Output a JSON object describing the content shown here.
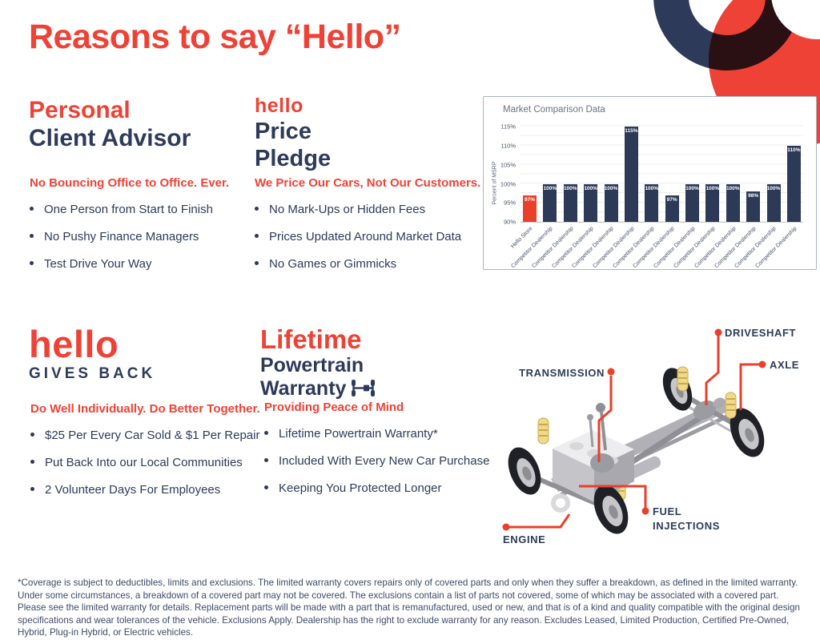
{
  "page": {
    "title": "Reasons to say “Hello”"
  },
  "colors": {
    "accent_red": "#ee4236",
    "navy": "#2d3a5a",
    "chart_bar_red": "#e8402a",
    "chart_bar_navy": "#2c3a58"
  },
  "sections": {
    "advisor": {
      "title_accent": "Personal",
      "title_rest": "Client Advisor",
      "subhead": "No Bouncing Office to Office. Ever.",
      "bullets": [
        "One Person from Start to Finish",
        "No Pushy Finance Managers",
        "Test Drive Your Way"
      ]
    },
    "price": {
      "logo": "hello",
      "title_lines": [
        "Price",
        "Pledge"
      ],
      "subhead": "We Price Our Cars, Not Our Customers.",
      "bullets": [
        "No Mark-Ups or Hidden Fees",
        "Prices Updated Around Market Data",
        "No Games or Gimmicks"
      ]
    },
    "gives_back": {
      "logo": "hello",
      "title_rest": "GIVES BACK",
      "subhead": "Do Well Individually. Do Better Together.",
      "bullets": [
        "$25 Per Every Car Sold & $1 Per Repair",
        "Put Back Into our Local Communities",
        "2 Volunteer Days For Employees"
      ]
    },
    "warranty": {
      "title_accent": "Lifetime",
      "title_lines": [
        "Powertrain",
        "Warranty"
      ],
      "subhead": "Providing Peace of Mind",
      "bullets": [
        "Lifetime Powertrain Warranty*",
        "Included With Every New Car Purchase",
        "Keeping You Protected Longer"
      ]
    }
  },
  "chart_data": {
    "type": "bar",
    "title": "Market Comparison Data",
    "xlabel": "",
    "ylabel": "Percent of MSRP",
    "ylim": [
      90,
      117
    ],
    "yticks": [
      90,
      95,
      100,
      105,
      110,
      115
    ],
    "grid": true,
    "legend": false,
    "categories": [
      "Hello Store",
      "Competitor Dealership",
      "Competitor Dealership",
      "Competitor Dealership",
      "Competitor Dealership",
      "Competitor Dealership",
      "Competitor Dealership",
      "Competitor Dealership",
      "Competitor Dealership",
      "Competitor Dealership",
      "Competitor Dealership",
      "Competitor Dealership",
      "Competitor Dealership",
      "Competitor Dealership"
    ],
    "values": [
      97,
      100,
      100,
      100,
      100,
      115,
      100,
      97,
      100,
      100,
      100,
      98,
      100,
      110
    ],
    "bar_labels": [
      "97%",
      "100%",
      "100%",
      "100%",
      "100%",
      "115%",
      "100%",
      "97%",
      "100%",
      "100%",
      "100%",
      "98%",
      "100%",
      "110%"
    ],
    "highlight_index": 0,
    "highlight_color": "#e8402a",
    "bar_color": "#2c3a58"
  },
  "diagram": {
    "labels": {
      "transmission": "TRANSMISSION",
      "driveshaft": "DRIVESHAFT",
      "axle": "AXLE",
      "fuel_injections": "FUEL INJECTIONS",
      "engine": "ENGINE"
    }
  },
  "footer": {
    "disclaimer": "*Coverage is subject to deductibles, limits and exclusions. The limited warranty covers repairs only of covered parts and only when they suffer a breakdown, as defined in the limited warranty. Under some circumstances, a breakdown of a covered part may not be covered. The exclusions contain a list of parts not covered, some of which may be associated with a covered part. Please see the limited warranty for details. Replacement parts will be made with a part that is remanufactured, used or new, and that is of a kind and quality compatible with the original design specifications and wear tolerances of the vehicle. Exclusions Apply. Dealership has the right to exclude warranty for any reason. Excludes Leased, Limited Production, Certified Pre-Owned, Hybrid, Plug-in Hybrid, or Electric vehicles."
  }
}
